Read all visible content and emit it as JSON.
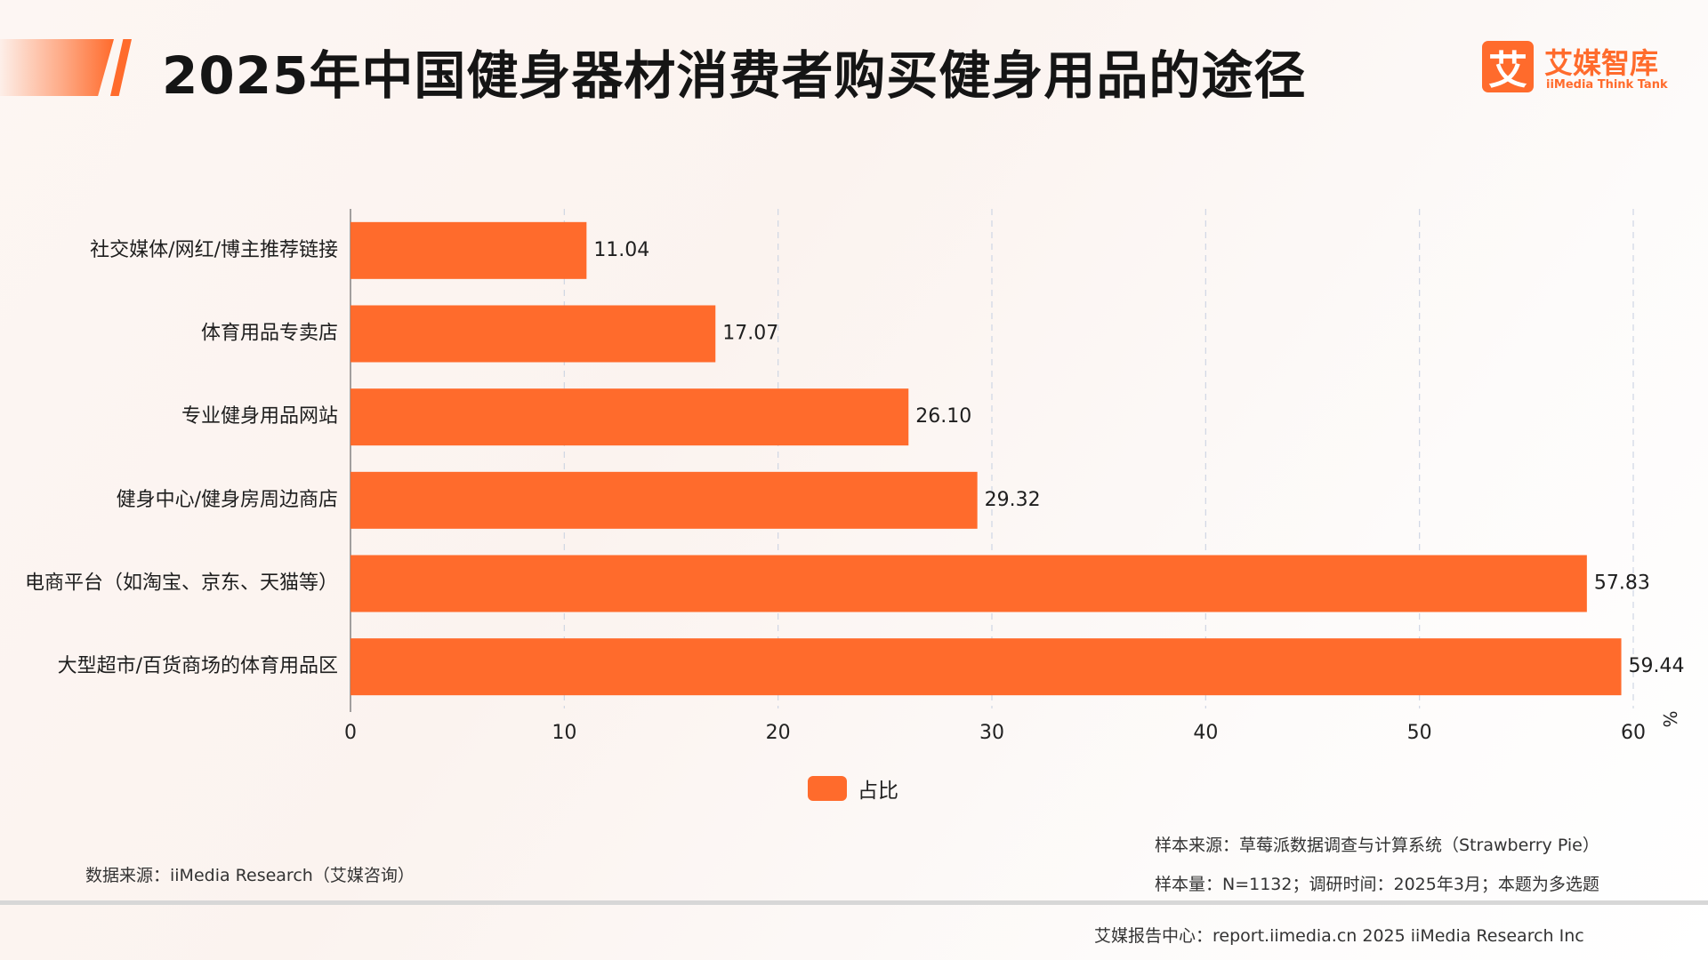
{
  "header": {
    "title": "2025年中国健身器材消费者购买健身用品的途径",
    "logo_mark": "艾",
    "logo_cn": "艾媒智库",
    "logo_en": "iiMedia Think Tank",
    "accent_color": "#ff6b2c"
  },
  "chart_data": {
    "type": "bar",
    "orientation": "horizontal",
    "categories": [
      "社交媒体/网红/博主推荐链接",
      "体育用品专卖店",
      "专业健身用品网站",
      "健身中心/健身房周边商店",
      "电商平台（如淘宝、京东、天猫等）",
      "大型超市/百货商场的体育用品区"
    ],
    "series": [
      {
        "name": "占比",
        "values": [
          11.04,
          17.07,
          26.1,
          29.32,
          57.83,
          59.44
        ],
        "value_labels": [
          "11.04",
          "17.07",
          "26.10",
          "29.32",
          "57.83",
          "59.44"
        ],
        "color": "#ff6b2c"
      }
    ],
    "xlim": [
      0,
      60
    ],
    "x_ticks": [
      "0",
      "10",
      "20",
      "30",
      "40",
      "50",
      "60"
    ],
    "unit": "%",
    "grid": true,
    "legend": "bottom-center"
  },
  "sources": {
    "data_source": "数据来源：iiMedia Research（艾媒咨询）",
    "sample_source": "样本来源：草莓派数据调查与计算系统（Strawberry Pie）",
    "sample_info": "样本量：N=1132；调研时间：2025年3月；本题为多选题"
  },
  "footer": {
    "text": "艾媒报告中心：report.iimedia.cn   2025 iiMedia Research Inc"
  }
}
